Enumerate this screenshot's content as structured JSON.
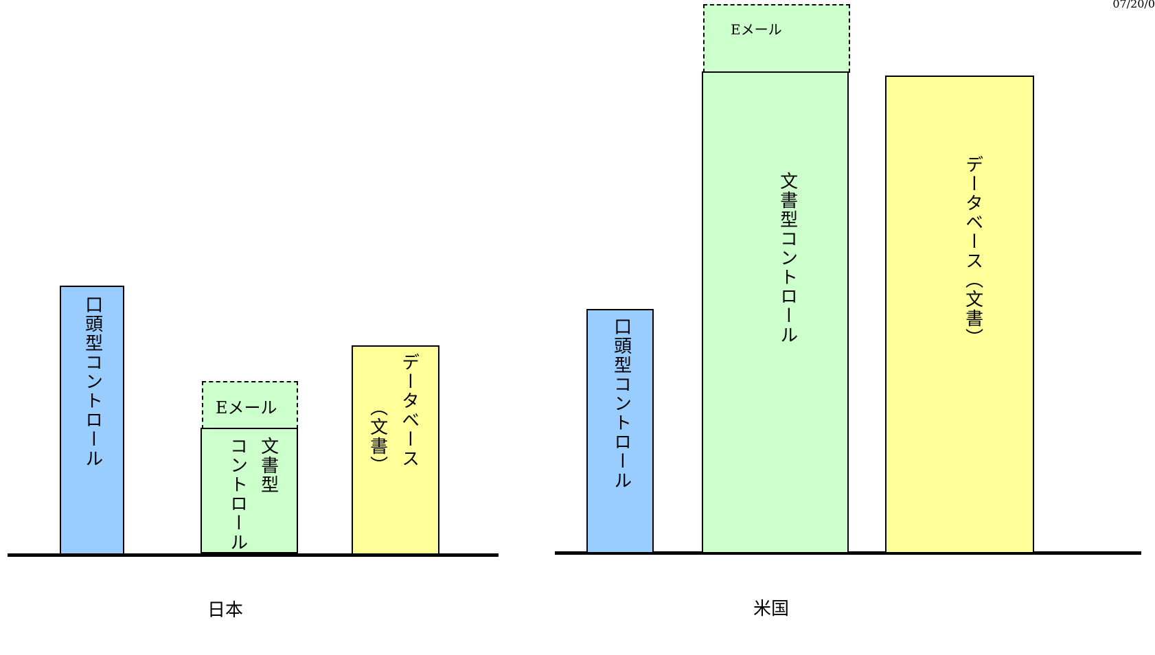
{
  "date": "07/20/0",
  "colors": {
    "oral": "#99ccff",
    "document": "#ccffcc",
    "database": "#ffff99",
    "line": "#000000"
  },
  "japan": {
    "caption": "日本",
    "oral_label": "口頭型コントロール",
    "document_label_line1": "文書型",
    "document_label_line2": "コントロール",
    "email_label": "Eメール",
    "database_label_line1": "データベース",
    "database_label_line2": "（文書）"
  },
  "usa": {
    "caption": "米国",
    "oral_label": "口頭型コントロール",
    "document_label": "文書型コントロール",
    "email_label": "Eメール",
    "database_label": "データベース（文書）"
  }
}
